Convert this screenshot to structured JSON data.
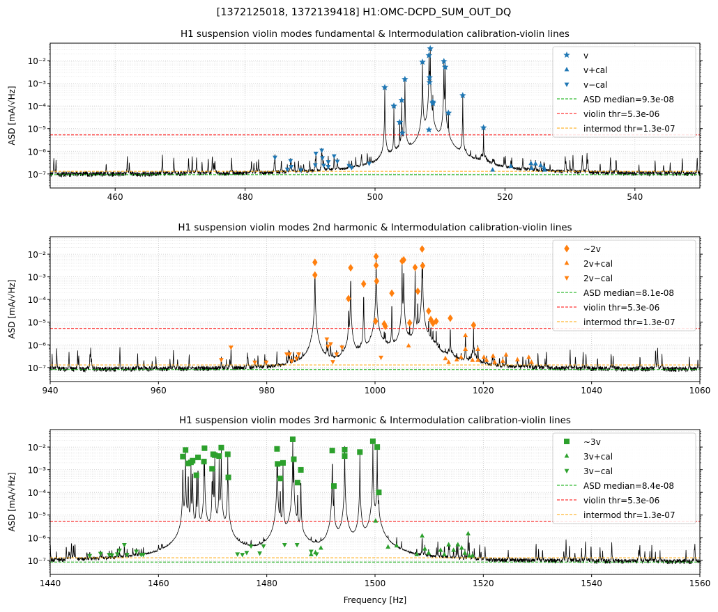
{
  "suptitle": "[1372125018, 1372139418]  H1:OMC-DCPD_SUM_OUT_DQ",
  "colors": {
    "trace": "#000000",
    "median": "#00aa00",
    "violin_thr": "#ff0000",
    "intermod_thr": "#ffa500",
    "panel1": "#1f77b4",
    "panel2": "#ff7f0e",
    "panel3": "#2ca02c",
    "grid": "#b0b0b0"
  },
  "chart_data": [
    {
      "type": "line",
      "title": "H1 suspension violin modes fundamental & Intermodulation calibration-violin lines",
      "xlabel": "",
      "ylabel": "ASD [mA/√Hz]",
      "xlim": [
        450,
        550
      ],
      "xticks": [
        460,
        480,
        500,
        520,
        540
      ],
      "yscale": "log",
      "ylim": [
        2.4e-08,
        0.059
      ],
      "yticks": [
        "10⁻²",
        "10⁻³",
        "10⁻⁴",
        "10⁻⁵",
        "10⁻⁶",
        "10⁻⁷"
      ],
      "ytick_values": [
        0.01,
        0.001,
        0.0001,
        1e-05,
        1e-06,
        1e-07
      ],
      "grid": true,
      "legend_position": "top-right",
      "series": [
        {
          "name": "v",
          "marker": "star",
          "x": [
            501.5,
            502.9,
            503.8,
            504.1,
            504.2,
            504.6,
            507.3,
            508.3,
            508.5,
            508.4,
            508.4,
            508.3,
            508.9,
            508.9,
            510.6,
            510.8,
            511.3,
            513.5,
            516.7
          ],
          "y": [
            0.00066,
            0.0001,
            1.9e-05,
            0.00018,
            6.4e-06,
            0.0015,
            0.0087,
            0.017,
            0.034,
            0.0018,
            0.0011,
            8.9e-06,
            0.00015,
            0.00013,
            0.0093,
            0.0052,
            4.9e-05,
            0.00029,
            1.1e-05
          ]
        },
        {
          "name": "v+cal",
          "marker": "triangle-up",
          "x": [
            518.1,
            520.9,
            524.0,
            524.1,
            524.7,
            525.5,
            526.0,
            526.1
          ],
          "y": [
            1.5e-07,
            2.2e-07,
            2.9e-07,
            1.8e-07,
            2.8e-07,
            2.4e-07,
            1.9e-07,
            1.5e-07
          ]
        },
        {
          "name": "v−cal",
          "marker": "triangle-down",
          "x": [
            484.6,
            486.5,
            487.0,
            487.1,
            488.6,
            490.9,
            491.8,
            490.8,
            491.9,
            492.1,
            492.8,
            492.8,
            493.7,
            494.2,
            496.0,
            496.4,
            499.1
          ],
          "y": [
            5.4e-07,
            1.6e-07,
            3.9e-07,
            2.1e-07,
            1.5e-07,
            8.1e-07,
            1.1e-06,
            2.5e-07,
            5.1e-07,
            2.4e-07,
            3.4e-07,
            2.1e-07,
            6.2e-07,
            3.6e-07,
            2.3e-07,
            1.9e-07,
            2.9e-07
          ]
        }
      ],
      "thresholds": [
        {
          "name": "ASD median=9.3e-08",
          "value": 9.3e-08,
          "color_key": "median"
        },
        {
          "name": "violin thr=5.3e-06",
          "value": 5.3e-06,
          "color_key": "violin_thr"
        },
        {
          "name": "intermod thr=1.3e-07",
          "value": 1.3e-07,
          "color_key": "intermod_thr"
        }
      ]
    },
    {
      "type": "line",
      "title": "H1 suspension violin modes 2nd harmonic & Intermodulation calibration-violin lines",
      "xlabel": "",
      "ylabel": "ASD [mA/√Hz]",
      "xlim": [
        940,
        1060
      ],
      "xticks": [
        940,
        960,
        980,
        1000,
        1020,
        1040,
        1060
      ],
      "yscale": "log",
      "ylim": [
        2.4e-08,
        0.059
      ],
      "yticks": [
        "10⁻²",
        "10⁻³",
        "10⁻⁴",
        "10⁻⁵",
        "10⁻⁶",
        "10⁻⁷"
      ],
      "ytick_values": [
        0.01,
        0.001,
        0.0001,
        1e-05,
        1e-06,
        1e-07
      ],
      "grid": true,
      "legend_position": "top-right",
      "series": [
        {
          "name": "~2v",
          "marker": "diamond",
          "x": [
            988.9,
            988.9,
            995.1,
            995.5,
            997.9,
            1000.1,
            1000.2,
            1000.2,
            1000.3,
            1001.7,
            1001.9,
            1003.1,
            1005.0,
            1005.3,
            1006.4,
            1007.4,
            1007.9,
            1008.7,
            1008.8,
            1009.9,
            1010.3,
            1010.7,
            1011.3,
            1013.9,
            1018.2
          ],
          "y": [
            0.0012,
            0.0044,
            0.00011,
            0.0025,
            0.00049,
            1.1e-05,
            0.0032,
            0.0079,
            0.00065,
            8.3e-06,
            6.6e-06,
            0.00019,
            0.005,
            0.0056,
            9.3e-06,
            0.0026,
            0.00023,
            0.017,
            0.0031,
            3.1e-05,
            1.3e-05,
            8.9e-06,
            1.1e-05,
            1.5e-05,
            7.4e-06
          ]
        },
        {
          "name": "2v+cal",
          "marker": "triangle-up",
          "x": [
            1006.2,
            1013.0,
            1013.6,
            1015.1,
            1015.9,
            1016.7,
            1016.7,
            1018.0,
            1019.0,
            1019.0,
            1020.1,
            1020.6,
            1021.8,
            1022.1,
            1023.6,
            1024.2,
            1026.3,
            1028.4,
            1028.9
          ],
          "y": [
            9.1e-07,
            2.5e-07,
            1.7e-07,
            2.2e-07,
            2.8e-07,
            2.6e-06,
            6.4e-07,
            2.1e-07,
            2.1e-07,
            6.4e-07,
            2.8e-07,
            2.1e-07,
            3.2e-07,
            1.7e-07,
            1.9e-07,
            3.6e-07,
            2.2e-07,
            2.8e-07,
            1.7e-07
          ]
        },
        {
          "name": "2v−cal",
          "marker": "triangle-down",
          "x": [
            971.6,
            973.4,
            977.8,
            979.9,
            983.7,
            984.2,
            984.6,
            985.5,
            985.9,
            991.1,
            991.3,
            991.8,
            992.2,
            992.9,
            993.9,
            1001.1
          ],
          "y": [
            2.2e-07,
            7.8e-07,
            1.7e-07,
            1.7e-07,
            3.9e-07,
            3.9e-07,
            1.9e-07,
            2.5e-07,
            3.9e-07,
            1.8e-06,
            8.7e-07,
            1.1e-06,
            1.8e-07,
            3.9e-07,
            7.8e-07,
            2.8e-07
          ]
        }
      ],
      "thresholds": [
        {
          "name": "ASD median=8.1e-08",
          "value": 8.1e-08,
          "color_key": "median"
        },
        {
          "name": "violin thr=5.3e-06",
          "value": 5.3e-06,
          "color_key": "violin_thr"
        },
        {
          "name": "intermod thr=1.3e-07",
          "value": 1.3e-07,
          "color_key": "intermod_thr"
        }
      ]
    },
    {
      "type": "line",
      "title": "H1 suspension violin modes 3rd harmonic & Intermodulation calibration-violin lines",
      "xlabel": "Frequency [Hz]",
      "ylabel": "ASD [mA/√Hz]",
      "xlim": [
        1440,
        1560
      ],
      "xticks": [
        1440,
        1460,
        1480,
        1500,
        1520,
        1540,
        1560
      ],
      "yscale": "log",
      "ylim": [
        2.4e-08,
        0.059
      ],
      "yticks": [
        "10⁻²",
        "10⁻³",
        "10⁻⁴",
        "10⁻⁵",
        "10⁻⁶",
        "10⁻⁷"
      ],
      "ytick_values": [
        0.01,
        0.001,
        0.0001,
        1e-05,
        1e-06,
        1e-07
      ],
      "grid": true,
      "legend_position": "top-right",
      "series": [
        {
          "name": "~3v",
          "marker": "square",
          "x": [
            1464.5,
            1465.0,
            1465.5,
            1466.0,
            1466.3,
            1467.0,
            1467.3,
            1468.4,
            1468.5,
            1469.9,
            1470.1,
            1470.4,
            1471.2,
            1471.6,
            1472.8,
            1472.9,
            1481.9,
            1482.0,
            1482.5,
            1483.0,
            1484.8,
            1485.0,
            1485.7,
            1486.3,
            1492.1,
            1492.4,
            1494.4,
            1494.4,
            1497.2,
            1499.6,
            1500.4,
            1500.7
          ],
          "y": [
            0.0038,
            0.0074,
            0.0019,
            0.0021,
            0.0025,
            0.00057,
            0.0035,
            0.0023,
            0.0089,
            0.0011,
            0.0048,
            0.0044,
            0.004,
            0.0095,
            0.0048,
            0.00046,
            0.0083,
            0.0018,
            0.00041,
            0.002,
            0.022,
            0.0029,
            0.00027,
            0.00098,
            0.007,
            0.00019,
            0.0076,
            0.004,
            0.006,
            0.018,
            0.01,
            0.0001
          ]
        },
        {
          "name": "3v+cal",
          "marker": "triangle-up",
          "x": [
            1488.2,
            1489.0,
            1490.0,
            1500.1,
            1502.4,
            1504.0,
            1507.7,
            1508.7,
            1509.2,
            1509.9,
            1512.1,
            1512.8,
            1513.6,
            1514.5,
            1515.3,
            1516.0,
            1516.6,
            1517.2,
            1517.4,
            1518.0
          ],
          "y": [
            1.8e-07,
            2.2e-07,
            3.5e-07,
            5.5e-06,
            3.9e-07,
            4.4e-07,
            1.8e-07,
            1.2e-06,
            3.2e-07,
            2.1e-07,
            2.8e-07,
            1.8e-07,
            4.9e-07,
            2.8e-07,
            4.9e-07,
            3.5e-07,
            2.1e-07,
            1.5e-06,
            1.6e-07,
            1.6e-07
          ]
        },
        {
          "name": "3v−cal",
          "marker": "triangle-down",
          "x": [
            1447.3,
            1449.3,
            1450.9,
            1451.4,
            1452.4,
            1452.8,
            1453.7,
            1454.2,
            1455.9,
            1456.8,
            1457.2,
            1474.6,
            1475.5,
            1476.3,
            1477.1,
            1478.7,
            1479.4,
            1483.3,
            1485.6,
            1488.2,
            1489.2
          ],
          "y": [
            1.6e-07,
            2e-07,
            1.8e-07,
            1.7e-07,
            1.9e-07,
            2.8e-07,
            4.9e-07,
            1.8e-07,
            2.5e-07,
            1.8e-07,
            1.8e-07,
            1.9e-07,
            1.8e-07,
            2.2e-07,
            4.3e-07,
            2.1e-07,
            4.3e-07,
            4.9e-07,
            4.9e-07,
            2.5e-07,
            1.9e-07
          ]
        }
      ],
      "thresholds": [
        {
          "name": "ASD median=8.4e-08",
          "value": 8.4e-08,
          "color_key": "median"
        },
        {
          "name": "violin thr=5.3e-06",
          "value": 5.3e-06,
          "color_key": "violin_thr"
        },
        {
          "name": "intermod thr=1.3e-07",
          "value": 1.3e-07,
          "color_key": "intermod_thr"
        }
      ]
    }
  ]
}
